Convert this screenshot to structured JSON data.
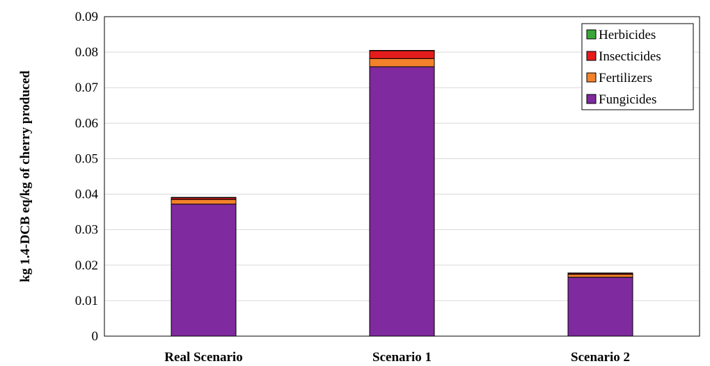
{
  "chart_data": {
    "type": "bar",
    "stacked": true,
    "categories": [
      "Real Scenario",
      "Scenario 1",
      "Scenario 2"
    ],
    "series": [
      {
        "name": "Fungicides",
        "color": "#7f2a9e",
        "values": [
          0.0372,
          0.0759,
          0.0166
        ]
      },
      {
        "name": "Fertilizers",
        "color": "#f4822a",
        "values": [
          0.0013,
          0.0023,
          0.0008
        ]
      },
      {
        "name": "Insecticides",
        "color": "#e51c1c",
        "values": [
          0.0005,
          0.0022,
          0.0003
        ]
      },
      {
        "name": "Herbicides",
        "color": "#3aa63a",
        "values": [
          0.0001,
          0.0001,
          0.0001
        ]
      }
    ],
    "ylabel": "kg 1.4-DCB eq/kg of cherry produced",
    "xlabel": "",
    "ylim": [
      0,
      0.09
    ],
    "yticks": [
      "0",
      "0.01",
      "0.02",
      "0.03",
      "0.04",
      "0.05",
      "0.06",
      "0.07",
      "0.08",
      "0.09"
    ],
    "grid": true,
    "legend_position": "top-right",
    "legend_order": [
      "Herbicides",
      "Insecticides",
      "Fertilizers",
      "Fungicides"
    ]
  }
}
